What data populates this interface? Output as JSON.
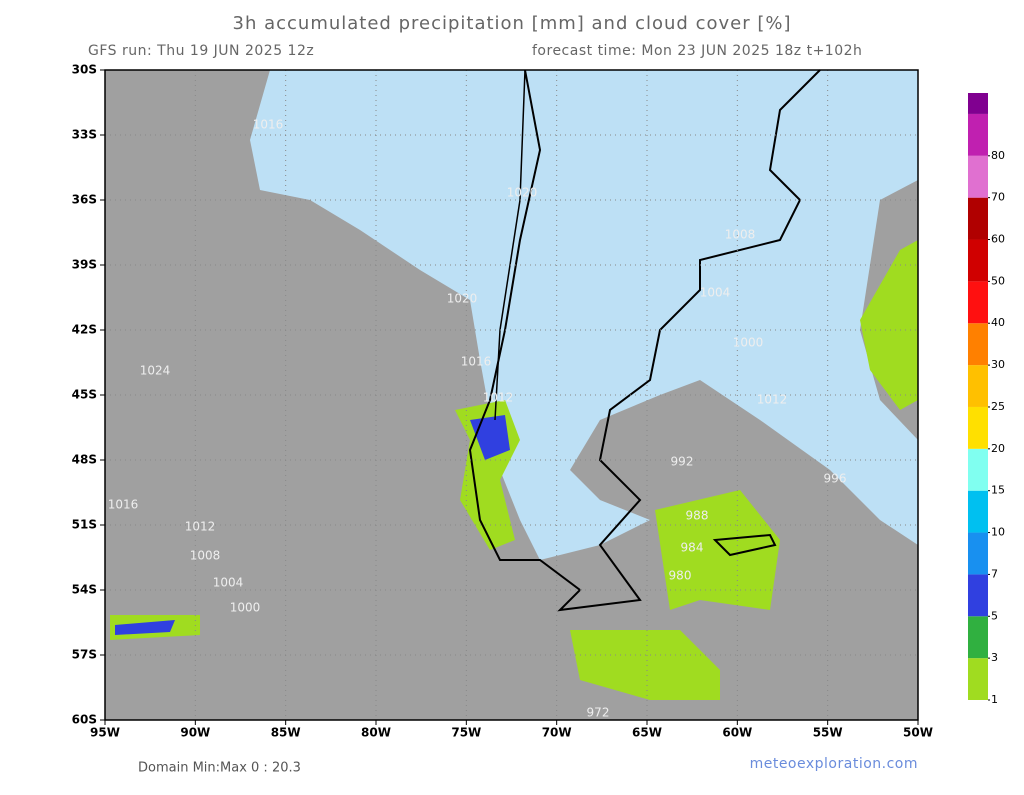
{
  "header": {
    "title": "3h accumulated precipitation [mm] and cloud cover [%]",
    "run": "GFS run: Thu 19 JUN 2025 12z",
    "forecast": "forecast time: Mon 23 JUN 2025 18z  t+102h"
  },
  "lat_labels": [
    "30S",
    "33S",
    "36S",
    "39S",
    "42S",
    "45S",
    "48S",
    "51S",
    "54S",
    "57S",
    "60S"
  ],
  "lon_labels": [
    "95W",
    "90W",
    "85W",
    "80W",
    "75W",
    "70W",
    "65W",
    "60W",
    "55W",
    "50W"
  ],
  "isobar_labels": [
    "1024",
    "1020",
    "1016",
    "1012",
    "1008",
    "1004",
    "1000",
    "1016",
    "1012",
    "1008",
    "1004",
    "1000",
    "996",
    "992",
    "988",
    "984",
    "980",
    "972",
    "1020",
    "1016",
    "1012"
  ],
  "colorbar": {
    "ticks": [
      1,
      3,
      5,
      7,
      10,
      15,
      20,
      25,
      30,
      40,
      50,
      60,
      70,
      80
    ],
    "colors": [
      "#a0dc20",
      "#30b040",
      "#3040e0",
      "#1890f0",
      "#00c0f0",
      "#80fff0",
      "#ffe000",
      "#ffc000",
      "#ff8000",
      "#ff1010",
      "#d00000",
      "#b00000",
      "#e070d0",
      "#c020b0",
      "#800090"
    ]
  },
  "footer": {
    "domain": "Domain Min:Max 0 : 20.3",
    "credit": "meteoexploration.com"
  }
}
